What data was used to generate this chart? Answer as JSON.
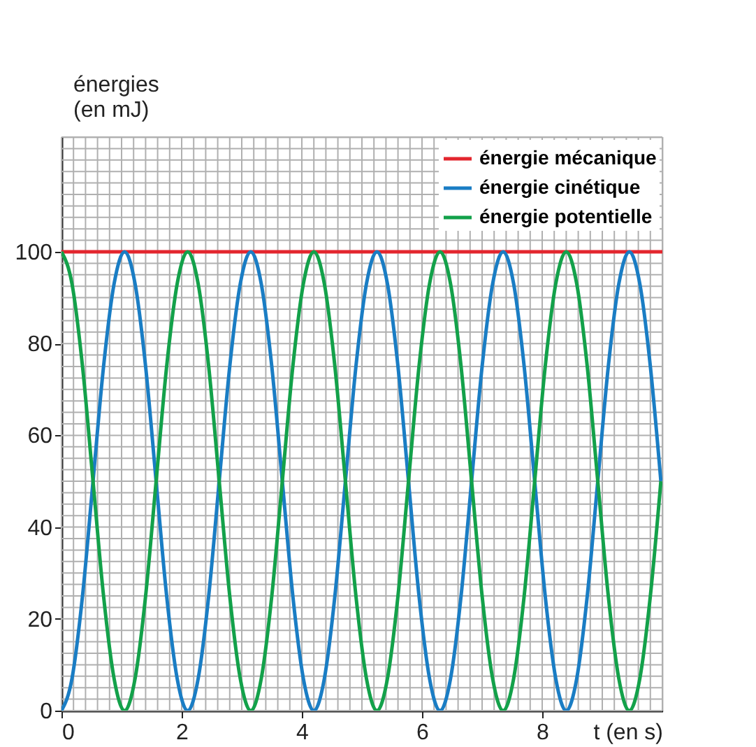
{
  "chart_data": {
    "type": "line",
    "xlabel": "t (en s)",
    "ylabel": "énergies (en mJ)",
    "x": [
      0,
      0.175,
      0.35,
      0.525,
      0.7,
      0.875,
      1.05,
      1.225,
      1.4,
      1.575,
      1.75,
      1.925,
      2.1,
      2.275,
      2.45,
      2.625,
      2.8,
      2.975,
      3.15,
      3.325,
      3.5,
      3.675,
      3.85,
      4.025,
      4.2,
      4.375,
      4.55,
      4.725,
      4.9,
      5.075,
      5.25,
      5.425,
      5.6,
      5.775,
      5.95,
      6.125,
      6.3,
      6.475,
      6.65,
      6.825,
      7.0,
      7.175,
      7.35,
      7.525,
      7.7,
      7.875,
      8.05,
      8.225,
      8.4,
      8.575,
      8.75,
      8.925,
      9.1,
      9.275,
      9.45,
      9.625,
      9.8,
      9.975
    ],
    "series": [
      {
        "name": "énergie mécanique",
        "color": "#e3262e",
        "x": [
          0,
          10
        ],
        "values": [
          100,
          100
        ]
      },
      {
        "name": "énergie cinétique",
        "color": "#1a7dc4",
        "values": [
          0,
          7,
          25,
          50,
          75,
          93,
          100,
          93,
          75,
          50,
          25,
          7,
          0,
          7,
          25,
          50,
          75,
          93,
          100,
          93,
          75,
          50,
          25,
          7,
          0,
          7,
          25,
          50,
          75,
          93,
          100,
          93,
          75,
          50,
          25,
          7,
          0,
          7,
          25,
          50,
          75,
          93,
          100,
          93,
          75,
          50,
          25,
          7,
          0,
          7,
          25,
          50,
          75,
          93,
          100,
          93,
          75,
          50
        ]
      },
      {
        "name": "énergie potentielle",
        "color": "#13a14a",
        "values": [
          100,
          93,
          75,
          50,
          25,
          7,
          0,
          7,
          25,
          50,
          75,
          93,
          100,
          93,
          75,
          50,
          25,
          7,
          0,
          7,
          25,
          50,
          75,
          93,
          100,
          93,
          75,
          50,
          25,
          7,
          0,
          7,
          25,
          50,
          75,
          93,
          100,
          93,
          75,
          50,
          25,
          7,
          0,
          7,
          25,
          50,
          75,
          93,
          100,
          93,
          75,
          50,
          25,
          7,
          0,
          7,
          25,
          50
        ]
      }
    ],
    "xlim": [
      0,
      10
    ],
    "ylim": [
      0,
      125
    ],
    "xticks": [
      0,
      2,
      4,
      6,
      8
    ],
    "yticks": [
      0,
      20,
      40,
      60,
      80,
      100
    ],
    "grid": true,
    "legend": "top right",
    "marker": "none",
    "line_style": "solid"
  }
}
